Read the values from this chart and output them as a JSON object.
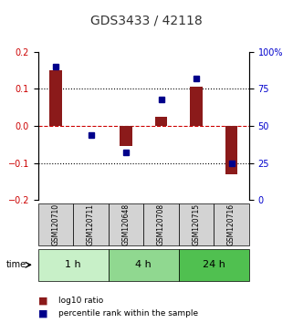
{
  "title": "GDS3433 / 42118",
  "samples": [
    "GSM120710",
    "GSM120711",
    "GSM120648",
    "GSM120708",
    "GSM120715",
    "GSM120716"
  ],
  "log10_ratio": [
    0.15,
    0.0,
    -0.055,
    0.025,
    0.105,
    -0.13
  ],
  "percentile_rank": [
    90,
    44,
    32,
    68,
    82,
    25
  ],
  "time_groups": [
    {
      "label": "1 h",
      "n": 2,
      "color": "#c8f0c8"
    },
    {
      "label": "4 h",
      "n": 2,
      "color": "#90d890"
    },
    {
      "label": "24 h",
      "n": 2,
      "color": "#50c050"
    }
  ],
  "ylim_left": [
    -0.2,
    0.2
  ],
  "ylim_right": [
    0,
    100
  ],
  "bar_color": "#8b1a1a",
  "dot_color": "#00008b",
  "background_color": "#ffffff",
  "label_color_left": "#cc0000",
  "label_color_right": "#0000cc",
  "zero_line_color": "#cc0000",
  "grid_color": "#000000",
  "sample_box_color": "#d3d3d3"
}
